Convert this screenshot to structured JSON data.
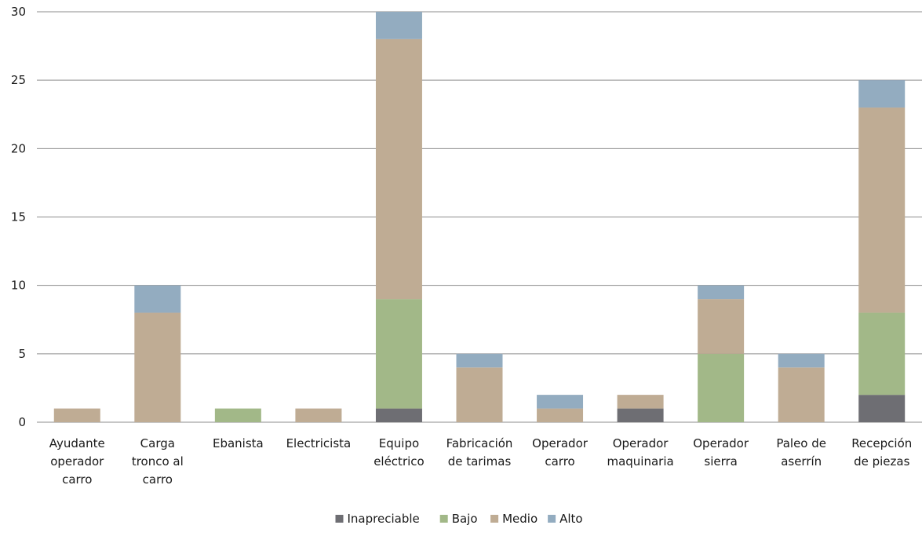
{
  "chart_data": {
    "type": "bar",
    "stacked": true,
    "categories": [
      [
        "Ayudante",
        "operador",
        "carro"
      ],
      [
        "Carga",
        "tronco al",
        "carro"
      ],
      [
        "Ebanista"
      ],
      [
        "Electricista"
      ],
      [
        "Equipo",
        "eléctrico"
      ],
      [
        "Fabricación",
        "de tarimas"
      ],
      [
        "Operador",
        "carro"
      ],
      [
        "Operador",
        "maquinaria"
      ],
      [
        "Operador",
        "sierra"
      ],
      [
        "Paleo de",
        "aserrín"
      ],
      [
        "Recepción",
        "de piezas"
      ]
    ],
    "series": [
      {
        "name": "Inapreciable",
        "color": "#6e6e73",
        "values": [
          0,
          0,
          0,
          0,
          1,
          0,
          0,
          1,
          0,
          0,
          2
        ]
      },
      {
        "name": "Bajo",
        "color": "#a2b888",
        "values": [
          0,
          0,
          1,
          0,
          8,
          0,
          0,
          0,
          5,
          0,
          6
        ]
      },
      {
        "name": "Medio",
        "color": "#bfac94",
        "values": [
          1,
          8,
          0,
          1,
          19,
          4,
          1,
          1,
          4,
          4,
          15
        ]
      },
      {
        "name": "Alto",
        "color": "#93acc0",
        "values": [
          0,
          2,
          0,
          0,
          2,
          1,
          1,
          0,
          1,
          1,
          2
        ]
      }
    ],
    "ylim": [
      0,
      30
    ],
    "yticks": [
      0,
      5,
      10,
      15,
      20,
      25,
      30
    ],
    "grid": true,
    "legend": "bottom"
  }
}
